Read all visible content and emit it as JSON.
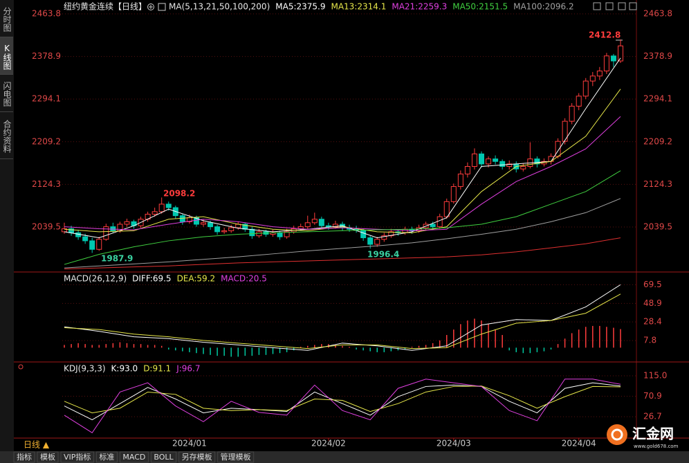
{
  "sidebar": {
    "items": [
      "分时图",
      "K线图",
      "闪电图",
      "合约资料"
    ],
    "active": 1
  },
  "chart_data": [
    {
      "type": "candlestick",
      "title": "纽约黄金连续【日线】",
      "subtitle": "MA(5,13,21,50,100,200)",
      "up_color": "#ff3c3c",
      "down_color": "#00c8b0",
      "ylim": [
        1951.3,
        2480.3
      ],
      "yticks": [
        2463.8,
        2378.9,
        2294.1,
        2209.2,
        2124.3,
        2039.5
      ],
      "xticks": [
        {
          "value": 18,
          "label": "2024/01"
        },
        {
          "value": 38,
          "label": "2024/02"
        },
        {
          "value": 56,
          "label": "2024/03"
        },
        {
          "value": 74,
          "label": "2024/04"
        }
      ],
      "candles": [
        [
          2030,
          2048,
          2026,
          2036
        ],
        [
          2036,
          2042,
          2022,
          2028
        ],
        [
          2028,
          2034,
          2014,
          2020
        ],
        [
          2020,
          2026,
          2006,
          2012
        ],
        [
          2012,
          2018,
          1987.9,
          1995
        ],
        [
          1995,
          2020,
          1992,
          2015
        ],
        [
          2015,
          2046,
          2012,
          2040
        ],
        [
          2040,
          2048,
          2028,
          2032
        ],
        [
          2032,
          2050,
          2028,
          2045
        ],
        [
          2045,
          2056,
          2040,
          2050
        ],
        [
          2050,
          2054,
          2036,
          2042
        ],
        [
          2042,
          2060,
          2038,
          2055
        ],
        [
          2055,
          2070,
          2050,
          2065
        ],
        [
          2065,
          2078,
          2060,
          2070
        ],
        [
          2070,
          2098.2,
          2066,
          2085
        ],
        [
          2085,
          2090,
          2072,
          2078
        ],
        [
          2078,
          2082,
          2056,
          2062
        ],
        [
          2062,
          2066,
          2044,
          2050
        ],
        [
          2050,
          2064,
          2046,
          2058
        ],
        [
          2058,
          2062,
          2040,
          2045
        ],
        [
          2045,
          2054,
          2040,
          2048
        ],
        [
          2048,
          2052,
          2034,
          2040
        ],
        [
          2040,
          2044,
          2024,
          2030
        ],
        [
          2030,
          2038,
          2026,
          2032
        ],
        [
          2032,
          2044,
          2028,
          2038
        ],
        [
          2038,
          2050,
          2034,
          2045
        ],
        [
          2045,
          2048,
          2030,
          2035
        ],
        [
          2035,
          2040,
          2016,
          2022
        ],
        [
          2022,
          2036,
          2018,
          2030
        ],
        [
          2030,
          2034,
          2020,
          2025
        ],
        [
          2025,
          2034,
          2020,
          2028
        ],
        [
          2028,
          2032,
          2014,
          2020
        ],
        [
          2020,
          2036,
          2016,
          2030
        ],
        [
          2030,
          2042,
          2026,
          2036
        ],
        [
          2036,
          2046,
          2032,
          2040
        ],
        [
          2040,
          2062,
          2036,
          2048
        ],
        [
          2048,
          2068,
          2044,
          2055
        ],
        [
          2055,
          2060,
          2038,
          2042
        ],
        [
          2042,
          2048,
          2034,
          2040
        ],
        [
          2040,
          2052,
          2036,
          2045
        ],
        [
          2045,
          2050,
          2032,
          2038
        ],
        [
          2038,
          2044,
          2030,
          2035
        ],
        [
          2035,
          2042,
          2028,
          2033
        ],
        [
          2033,
          2036,
          2012,
          2018
        ],
        [
          2018,
          2022,
          1996.4,
          2005
        ],
        [
          2005,
          2020,
          2000,
          2015
        ],
        [
          2015,
          2028,
          2010,
          2022
        ],
        [
          2022,
          2036,
          2018,
          2030
        ],
        [
          2030,
          2034,
          2022,
          2028
        ],
        [
          2028,
          2040,
          2024,
          2035
        ],
        [
          2035,
          2040,
          2026,
          2032
        ],
        [
          2032,
          2044,
          2028,
          2038
        ],
        [
          2038,
          2050,
          2034,
          2045
        ],
        [
          2045,
          2050,
          2034,
          2040
        ],
        [
          2040,
          2066,
          2036,
          2060
        ],
        [
          2060,
          2096,
          2056,
          2090
        ],
        [
          2090,
          2126,
          2086,
          2120
        ],
        [
          2120,
          2152,
          2114,
          2145
        ],
        [
          2145,
          2168,
          2138,
          2160
        ],
        [
          2160,
          2196,
          2154,
          2185
        ],
        [
          2185,
          2190,
          2158,
          2165
        ],
        [
          2165,
          2180,
          2158,
          2175
        ],
        [
          2175,
          2182,
          2164,
          2170
        ],
        [
          2170,
          2174,
          2154,
          2160
        ],
        [
          2160,
          2172,
          2154,
          2165
        ],
        [
          2165,
          2170,
          2148,
          2155
        ],
        [
          2155,
          2166,
          2150,
          2160
        ],
        [
          2160,
          2208,
          2156,
          2175
        ],
        [
          2175,
          2180,
          2158,
          2165
        ],
        [
          2165,
          2176,
          2160,
          2170
        ],
        [
          2170,
          2186,
          2164,
          2180
        ],
        [
          2180,
          2216,
          2176,
          2210
        ],
        [
          2210,
          2256,
          2204,
          2250
        ],
        [
          2250,
          2286,
          2244,
          2280
        ],
        [
          2280,
          2306,
          2272,
          2300
        ],
        [
          2300,
          2336,
          2294,
          2330
        ],
        [
          2330,
          2348,
          2320,
          2340
        ],
        [
          2340,
          2358,
          2332,
          2350
        ],
        [
          2350,
          2386,
          2344,
          2380
        ],
        [
          2380,
          2384,
          2358,
          2370
        ],
        [
          2370,
          2412.8,
          2366,
          2400
        ]
      ],
      "x": [
        0,
        5,
        10,
        15,
        20,
        25,
        30,
        35,
        40,
        45,
        50,
        55,
        60,
        65,
        70,
        75,
        80
      ],
      "series": [
        {
          "name": "MA5:2375.9",
          "color": "#ffffff",
          "values": [
            2030,
            2018,
            2042,
            2075,
            2052,
            2037,
            2030,
            2035,
            2042,
            2018,
            2030,
            2058,
            2160,
            2165,
            2170,
            2275,
            2375.9
          ]
        },
        {
          "name": "MA13:2314.1",
          "color": "#e8e84a",
          "values": [
            2035,
            2030,
            2032,
            2055,
            2060,
            2045,
            2035,
            2032,
            2040,
            2030,
            2028,
            2040,
            2110,
            2160,
            2170,
            2220,
            2314.1
          ]
        },
        {
          "name": "MA21:2259.3",
          "color": "#e040e0",
          "values": [
            2040,
            2036,
            2034,
            2045,
            2055,
            2050,
            2040,
            2035,
            2038,
            2035,
            2032,
            2035,
            2085,
            2130,
            2160,
            2195,
            2259.3
          ]
        },
        {
          "name": "MA50:2151.5",
          "color": "#40d040",
          "values": [
            1965,
            1985,
            2000,
            2012,
            2020,
            2025,
            2028,
            2030,
            2032,
            2034,
            2035,
            2038,
            2045,
            2060,
            2085,
            2110,
            2151.5
          ]
        },
        {
          "name": "MA100:2096.2",
          "color": "#a0a0a0",
          "values": [
            1958,
            1962,
            1966,
            1970,
            1975,
            1980,
            1986,
            1992,
            1997,
            2002,
            2008,
            2016,
            2025,
            2035,
            2050,
            2068,
            2096.2
          ]
        },
        {
          "color": "#e03030",
          "values": [
            1956,
            1958,
            1960,
            1962,
            1965,
            1968,
            1970,
            1972,
            1974,
            1976,
            1978,
            1980,
            1984,
            1990,
            1998,
            2006,
            2018
          ]
        }
      ]
    },
    {
      "type": "macd",
      "title": "MACD(26,12,9)",
      "ylim": [
        -15,
        82
      ],
      "yticks": [
        69.5,
        48.9,
        28.4,
        7.8
      ],
      "x": [
        0,
        5,
        10,
        15,
        20,
        25,
        30,
        35,
        40,
        45,
        50,
        55,
        60,
        65,
        70,
        75,
        80
      ],
      "series": [
        {
          "name": "DIFF:69.5",
          "color": "#ffffff",
          "values": [
            23,
            18,
            12,
            10,
            6,
            3,
            0,
            -3,
            5,
            2,
            -3,
            2,
            25,
            31,
            30,
            45,
            69.5
          ]
        },
        {
          "name": "DEA:59.2",
          "color": "#e8e84a",
          "values": [
            22,
            20,
            15,
            12,
            8,
            5,
            2,
            -1,
            3,
            3,
            -1,
            0,
            15,
            27,
            30,
            38,
            59.2
          ]
        }
      ],
      "histogram": {
        "name": "MACD:20.5",
        "color": "#e040e0",
        "up_color": "#ff3c3c",
        "down_color": "#00c8a0",
        "values": [
          3,
          4,
          5,
          4,
          3,
          3,
          4,
          5,
          6,
          5,
          4,
          4,
          3,
          3,
          2,
          -2,
          -3,
          -4,
          -5,
          -6,
          -7,
          -8,
          -9,
          -9,
          -10,
          -10,
          -9,
          -9,
          -8,
          -8,
          -7,
          -6,
          -5,
          -3,
          1,
          2,
          3,
          4,
          4,
          3,
          2,
          1,
          -2,
          -3,
          -4,
          -5,
          -5,
          -4,
          -3,
          -2,
          1,
          2,
          3,
          5,
          8,
          14,
          20,
          26,
          30,
          32,
          30,
          26,
          20,
          14,
          -3,
          -5,
          -6,
          -6,
          -5,
          -4,
          -2,
          4,
          10,
          16,
          20,
          23,
          24,
          24,
          23,
          22,
          20.5
        ]
      }
    },
    {
      "type": "kdj",
      "title": "KDJ(9,3,3)",
      "ylim": [
        -18,
        142
      ],
      "yticks": [
        {
          "value": 115,
          "label": "115.0"
        },
        70.9,
        26.7
      ],
      "x": [
        0,
        4,
        8,
        12,
        16,
        20,
        24,
        28,
        32,
        36,
        40,
        44,
        48,
        52,
        56,
        60,
        64,
        68,
        72,
        76,
        80
      ],
      "series": [
        {
          "name": "K:93.0",
          "color": "#ffffff",
          "values": [
            50,
            20,
            55,
            90,
            65,
            35,
            45,
            42,
            38,
            80,
            55,
            30,
            70,
            92,
            95,
            92,
            60,
            35,
            88,
            100,
            93
          ]
        },
        {
          "name": "D:91.1",
          "color": "#e8e84a",
          "values": [
            60,
            35,
            45,
            80,
            75,
            45,
            40,
            42,
            40,
            65,
            62,
            38,
            55,
            80,
            92,
            93,
            72,
            45,
            70,
            92,
            91.1
          ]
        },
        {
          "name": "J:96.7",
          "color": "#e040e0",
          "values": [
            30,
            -8,
            80,
            100,
            50,
            16,
            60,
            36,
            30,
            95,
            40,
            20,
            88,
            108,
            100,
            92,
            40,
            18,
            108,
            108,
            96.7
          ]
        }
      ]
    }
  ],
  "footer": {
    "period": "日线 ▲",
    "tabs": [
      "指标",
      "模板",
      "VIP指标",
      "标准",
      "MACD",
      "BOLL",
      "另存模板",
      "管理模板"
    ]
  },
  "logo": {
    "name": "汇金网",
    "url": "www.gold678.com"
  }
}
